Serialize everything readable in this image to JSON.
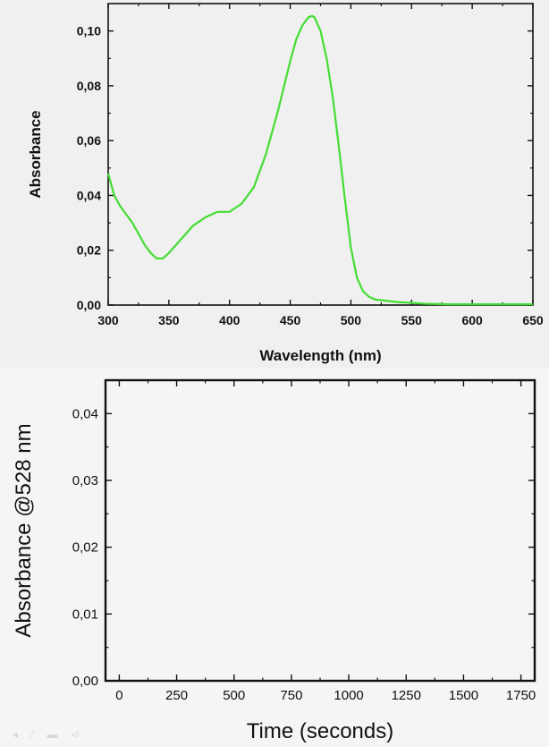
{
  "chart_data": [
    {
      "type": "line",
      "title": "",
      "xlabel": "Wavelength (nm)",
      "ylabel": "Absorbance",
      "xlim": [
        300,
        650
      ],
      "ylim": [
        0,
        0.11
      ],
      "x_ticks": [
        300,
        350,
        400,
        450,
        500,
        550,
        600,
        650
      ],
      "x_tick_labels": [
        "300",
        "350",
        "400",
        "450",
        "500",
        "550",
        "600",
        "650"
      ],
      "y_ticks": [
        0,
        0.02,
        0.04,
        0.06,
        0.08,
        0.1
      ],
      "y_tick_labels": [
        "0,00",
        "0,02",
        "0,04",
        "0,06",
        "0,08",
        "0,10"
      ],
      "grid": false,
      "line_color": "#44dd33",
      "series": [
        {
          "x": [
            300,
            305,
            310,
            320,
            330,
            335,
            340,
            345,
            350,
            360,
            370,
            380,
            385,
            390,
            400,
            410,
            420,
            430,
            440,
            445,
            450,
            455,
            460,
            465,
            468,
            470,
            475,
            480,
            485,
            490,
            495,
            500,
            505,
            510,
            515,
            520,
            530,
            540,
            550,
            560,
            580,
            600,
            620,
            650
          ],
          "y": [
            0.048,
            0.04,
            0.036,
            0.03,
            0.022,
            0.019,
            0.017,
            0.017,
            0.019,
            0.024,
            0.029,
            0.032,
            0.033,
            0.034,
            0.034,
            0.037,
            0.043,
            0.055,
            0.071,
            0.08,
            0.089,
            0.097,
            0.102,
            0.105,
            0.1055,
            0.105,
            0.1,
            0.09,
            0.076,
            0.058,
            0.039,
            0.021,
            0.01,
            0.005,
            0.003,
            0.002,
            0.0015,
            0.001,
            0.0008,
            0.0005,
            0.0003,
            0.0003,
            0.0003,
            0.0003
          ]
        }
      ]
    },
    {
      "type": "line",
      "title": "",
      "xlabel": "Time (seconds)",
      "ylabel": "Absorbance @528 nm",
      "xlim": [
        -60,
        1810
      ],
      "ylim": [
        0,
        0.045
      ],
      "x_ticks": [
        0,
        250,
        500,
        750,
        1000,
        1250,
        1500,
        1750
      ],
      "x_tick_labels": [
        "0",
        "250",
        "500",
        "750",
        "1000",
        "1250",
        "1500",
        "1750"
      ],
      "y_ticks": [
        0,
        0.01,
        0.02,
        0.03,
        0.04
      ],
      "y_tick_labels": [
        "0,00",
        "0,01",
        "0,02",
        "0,03",
        "0,04"
      ],
      "grid": false,
      "series": []
    }
  ]
}
